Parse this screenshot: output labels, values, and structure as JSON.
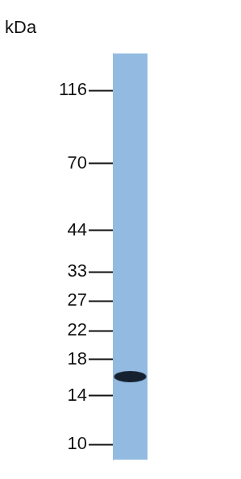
{
  "chart_data": {
    "type": "blot",
    "title": "kDa",
    "categories": [
      null
    ],
    "values": [
      16
    ],
    "color": "#15212e",
    "ylim": [
      9,
      150
    ],
    "yticks": [
      10,
      14,
      18,
      22,
      27,
      33,
      44,
      70,
      116
    ],
    "log": "y"
  }
}
